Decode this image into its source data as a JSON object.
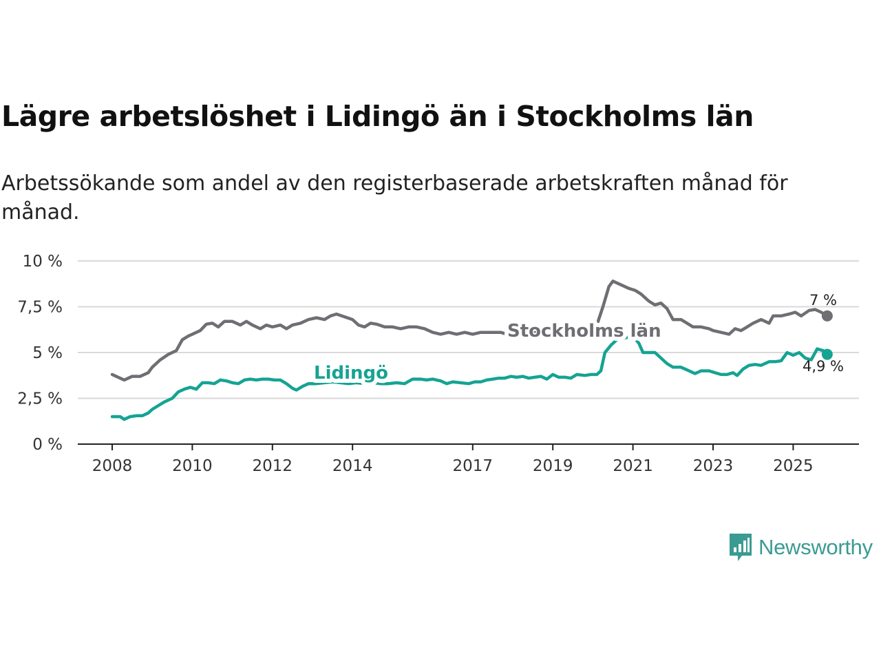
{
  "title": "Lägre arbetslöshet i Lidingö än i Stockholms län",
  "subtitle": "Arbetssökande som andel av den registerbaserade arbetskraften månad för månad.",
  "brand": {
    "name": "Newsworthy",
    "icon": "newsworthy-chart-icon",
    "color": "#3a9b92"
  },
  "chart_data": {
    "type": "line",
    "title": "Lägre arbetslöshet i Lidingö än i Stockholms län",
    "xlabel": "",
    "ylabel": "",
    "xlim": [
      2008,
      2025.9
    ],
    "ylim": [
      0,
      10
    ],
    "grid": true,
    "y_ticks": [
      {
        "value": 0,
        "label": "0 %"
      },
      {
        "value": 2.5,
        "label": "2,5 %"
      },
      {
        "value": 5,
        "label": "5 %"
      },
      {
        "value": 7.5,
        "label": "7,5 %"
      },
      {
        "value": 10,
        "label": "10 %"
      }
    ],
    "x_ticks": [
      {
        "value": 2008,
        "label": "2008"
      },
      {
        "value": 2010,
        "label": "2010"
      },
      {
        "value": 2012,
        "label": "2012"
      },
      {
        "value": 2014,
        "label": "2014"
      },
      {
        "value": 2017,
        "label": "2017"
      },
      {
        "value": 2019,
        "label": "2019"
      },
      {
        "value": 2021,
        "label": "2021"
      },
      {
        "value": 2023,
        "label": "2023"
      },
      {
        "value": 2025,
        "label": "2025"
      }
    ],
    "series": [
      {
        "name": "Stockholms län",
        "color": "#6e6e73",
        "end_label": "7 %",
        "points": [
          [
            2008.0,
            3.8
          ],
          [
            2008.3,
            3.5
          ],
          [
            2008.5,
            3.7
          ],
          [
            2008.7,
            3.7
          ],
          [
            2008.9,
            3.9
          ],
          [
            2009.0,
            4.2
          ],
          [
            2009.2,
            4.6
          ],
          [
            2009.4,
            4.9
          ],
          [
            2009.6,
            5.1
          ],
          [
            2009.75,
            5.7
          ],
          [
            2009.9,
            5.9
          ],
          [
            2010.0,
            6.0
          ],
          [
            2010.2,
            6.2
          ],
          [
            2010.35,
            6.55
          ],
          [
            2010.5,
            6.6
          ],
          [
            2010.65,
            6.4
          ],
          [
            2010.8,
            6.7
          ],
          [
            2011.0,
            6.7
          ],
          [
            2011.2,
            6.5
          ],
          [
            2011.35,
            6.7
          ],
          [
            2011.5,
            6.5
          ],
          [
            2011.7,
            6.3
          ],
          [
            2011.85,
            6.5
          ],
          [
            2012.0,
            6.4
          ],
          [
            2012.2,
            6.5
          ],
          [
            2012.35,
            6.3
          ],
          [
            2012.5,
            6.5
          ],
          [
            2012.7,
            6.6
          ],
          [
            2012.9,
            6.8
          ],
          [
            2013.1,
            6.9
          ],
          [
            2013.3,
            6.8
          ],
          [
            2013.45,
            7.0
          ],
          [
            2013.6,
            7.1
          ],
          [
            2013.8,
            6.95
          ],
          [
            2014.0,
            6.8
          ],
          [
            2014.15,
            6.5
          ],
          [
            2014.3,
            6.4
          ],
          [
            2014.45,
            6.6
          ],
          [
            2014.6,
            6.55
          ],
          [
            2014.8,
            6.4
          ],
          [
            2015.0,
            6.4
          ],
          [
            2015.2,
            6.3
          ],
          [
            2015.4,
            6.4
          ],
          [
            2015.6,
            6.4
          ],
          [
            2015.8,
            6.3
          ],
          [
            2016.0,
            6.1
          ],
          [
            2016.2,
            6.0
          ],
          [
            2016.4,
            6.1
          ],
          [
            2016.6,
            6.0
          ],
          [
            2016.8,
            6.1
          ],
          [
            2017.0,
            6.0
          ],
          [
            2017.2,
            6.1
          ],
          [
            2017.35,
            6.1
          ],
          [
            2017.5,
            6.1
          ],
          [
            2017.7,
            6.1
          ],
          [
            2017.85,
            6.0
          ],
          [
            2018.0,
            6.1
          ],
          [
            2018.2,
            6.1
          ],
          [
            2018.4,
            6.0
          ],
          [
            2018.6,
            6.1
          ],
          [
            2018.8,
            6.1
          ],
          [
            2019.0,
            6.1
          ],
          [
            2019.2,
            6.15
          ],
          [
            2019.4,
            6.1
          ],
          [
            2019.6,
            6.2
          ],
          [
            2019.8,
            6.3
          ],
          [
            2020.0,
            6.5
          ],
          [
            2020.1,
            6.5
          ],
          [
            2020.25,
            7.5
          ],
          [
            2020.4,
            8.6
          ],
          [
            2020.5,
            8.9
          ],
          [
            2020.7,
            8.7
          ],
          [
            2020.9,
            8.5
          ],
          [
            2021.05,
            8.4
          ],
          [
            2021.2,
            8.2
          ],
          [
            2021.4,
            7.8
          ],
          [
            2021.55,
            7.6
          ],
          [
            2021.7,
            7.7
          ],
          [
            2021.85,
            7.4
          ],
          [
            2022.0,
            6.8
          ],
          [
            2022.2,
            6.8
          ],
          [
            2022.35,
            6.6
          ],
          [
            2022.5,
            6.4
          ],
          [
            2022.7,
            6.4
          ],
          [
            2022.9,
            6.3
          ],
          [
            2023.0,
            6.2
          ],
          [
            2023.2,
            6.1
          ],
          [
            2023.4,
            6.0
          ],
          [
            2023.55,
            6.3
          ],
          [
            2023.7,
            6.2
          ],
          [
            2023.85,
            6.4
          ],
          [
            2024.0,
            6.6
          ],
          [
            2024.2,
            6.8
          ],
          [
            2024.4,
            6.6
          ],
          [
            2024.5,
            7.0
          ],
          [
            2024.7,
            7.0
          ],
          [
            2024.9,
            7.1
          ],
          [
            2025.05,
            7.2
          ],
          [
            2025.2,
            7.0
          ],
          [
            2025.4,
            7.3
          ],
          [
            2025.55,
            7.35
          ],
          [
            2025.7,
            7.2
          ],
          [
            2025.85,
            7.0
          ]
        ]
      },
      {
        "name": "Lidingö",
        "color": "#15a393",
        "end_label": "4,9 %",
        "points": [
          [
            2008.0,
            1.5
          ],
          [
            2008.2,
            1.5
          ],
          [
            2008.3,
            1.35
          ],
          [
            2008.45,
            1.5
          ],
          [
            2008.6,
            1.55
          ],
          [
            2008.75,
            1.55
          ],
          [
            2008.9,
            1.7
          ],
          [
            2009.0,
            1.9
          ],
          [
            2009.15,
            2.1
          ],
          [
            2009.3,
            2.3
          ],
          [
            2009.5,
            2.5
          ],
          [
            2009.65,
            2.85
          ],
          [
            2009.8,
            3.0
          ],
          [
            2009.95,
            3.1
          ],
          [
            2010.1,
            3.0
          ],
          [
            2010.25,
            3.35
          ],
          [
            2010.4,
            3.35
          ],
          [
            2010.55,
            3.3
          ],
          [
            2010.7,
            3.5
          ],
          [
            2010.85,
            3.45
          ],
          [
            2011.0,
            3.35
          ],
          [
            2011.15,
            3.3
          ],
          [
            2011.3,
            3.5
          ],
          [
            2011.45,
            3.55
          ],
          [
            2011.6,
            3.5
          ],
          [
            2011.75,
            3.55
          ],
          [
            2011.9,
            3.55
          ],
          [
            2012.05,
            3.5
          ],
          [
            2012.2,
            3.5
          ],
          [
            2012.35,
            3.3
          ],
          [
            2012.5,
            3.05
          ],
          [
            2012.6,
            2.95
          ],
          [
            2012.75,
            3.15
          ],
          [
            2012.9,
            3.3
          ],
          [
            2013.1,
            3.3
          ],
          [
            2013.3,
            3.35
          ],
          [
            2013.5,
            3.4
          ],
          [
            2013.7,
            3.35
          ],
          [
            2013.9,
            3.3
          ],
          [
            2014.1,
            3.35
          ],
          [
            2014.3,
            3.3
          ],
          [
            2014.5,
            3.35
          ],
          [
            2014.7,
            3.3
          ],
          [
            2014.9,
            3.3
          ],
          [
            2015.1,
            3.35
          ],
          [
            2015.3,
            3.3
          ],
          [
            2015.5,
            3.55
          ],
          [
            2015.7,
            3.55
          ],
          [
            2015.85,
            3.5
          ],
          [
            2016.0,
            3.55
          ],
          [
            2016.2,
            3.45
          ],
          [
            2016.35,
            3.3
          ],
          [
            2016.5,
            3.4
          ],
          [
            2016.7,
            3.35
          ],
          [
            2016.9,
            3.3
          ],
          [
            2017.05,
            3.4
          ],
          [
            2017.2,
            3.4
          ],
          [
            2017.35,
            3.5
          ],
          [
            2017.5,
            3.55
          ],
          [
            2017.65,
            3.6
          ],
          [
            2017.8,
            3.6
          ],
          [
            2017.95,
            3.7
          ],
          [
            2018.1,
            3.65
          ],
          [
            2018.25,
            3.7
          ],
          [
            2018.4,
            3.6
          ],
          [
            2018.55,
            3.65
          ],
          [
            2018.7,
            3.7
          ],
          [
            2018.85,
            3.55
          ],
          [
            2019.0,
            3.8
          ],
          [
            2019.15,
            3.65
          ],
          [
            2019.3,
            3.65
          ],
          [
            2019.45,
            3.6
          ],
          [
            2019.6,
            3.8
          ],
          [
            2019.8,
            3.75
          ],
          [
            2019.95,
            3.8
          ],
          [
            2020.1,
            3.8
          ],
          [
            2020.2,
            4.0
          ],
          [
            2020.3,
            5.0
          ],
          [
            2020.45,
            5.4
          ],
          [
            2020.6,
            5.7
          ],
          [
            2020.8,
            5.8
          ],
          [
            2021.0,
            5.9
          ],
          [
            2021.15,
            5.5
          ],
          [
            2021.25,
            5.0
          ],
          [
            2021.4,
            5.0
          ],
          [
            2021.55,
            5.0
          ],
          [
            2021.7,
            4.7
          ],
          [
            2021.85,
            4.4
          ],
          [
            2022.0,
            4.2
          ],
          [
            2022.2,
            4.2
          ],
          [
            2022.4,
            4.0
          ],
          [
            2022.55,
            3.85
          ],
          [
            2022.7,
            4.0
          ],
          [
            2022.9,
            4.0
          ],
          [
            2023.05,
            3.9
          ],
          [
            2023.2,
            3.8
          ],
          [
            2023.35,
            3.8
          ],
          [
            2023.5,
            3.9
          ],
          [
            2023.6,
            3.75
          ],
          [
            2023.75,
            4.1
          ],
          [
            2023.9,
            4.3
          ],
          [
            2024.05,
            4.35
          ],
          [
            2024.2,
            4.3
          ],
          [
            2024.4,
            4.5
          ],
          [
            2024.55,
            4.5
          ],
          [
            2024.7,
            4.55
          ],
          [
            2024.85,
            5.0
          ],
          [
            2025.0,
            4.85
          ],
          [
            2025.15,
            5.0
          ],
          [
            2025.3,
            4.7
          ],
          [
            2025.45,
            4.6
          ],
          [
            2025.6,
            5.2
          ],
          [
            2025.75,
            5.1
          ],
          [
            2025.85,
            4.9
          ]
        ]
      }
    ]
  }
}
